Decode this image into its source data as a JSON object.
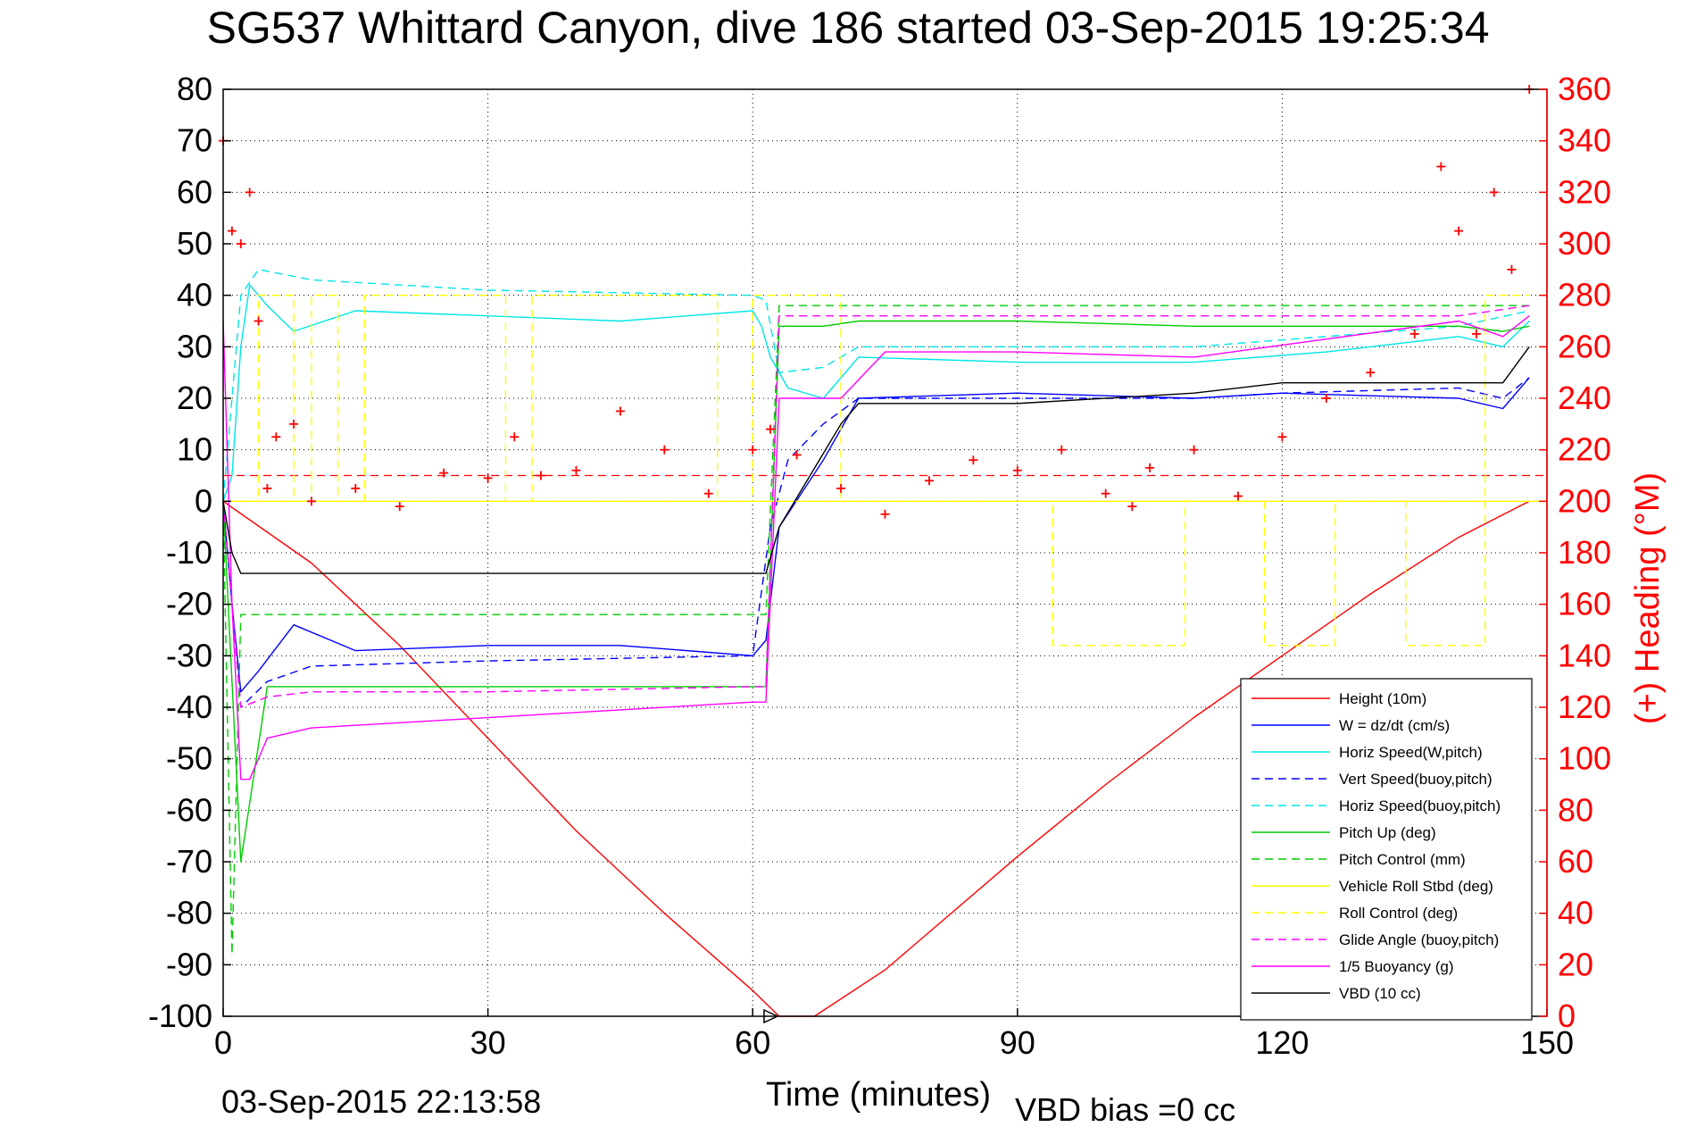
{
  "chart_data": {
    "type": "line",
    "title": "SG537 Whittard Canyon, dive 186 started 03-Sep-2015 19:25:34",
    "xlabel": "Time (minutes)",
    "y2label": "(+) Heading (°M)",
    "footer_timestamp": "03-Sep-2015 22:13:58",
    "footer_note": "VBD bias =0 cc",
    "xlim": [
      0,
      150
    ],
    "ylim": [
      -100,
      80
    ],
    "y2lim": [
      0,
      360
    ],
    "x_ticks": [
      "0",
      "30",
      "60",
      "90",
      "120",
      "150"
    ],
    "y_ticks": [
      "80",
      "70",
      "60",
      "50",
      "40",
      "30",
      "20",
      "10",
      "0",
      "-10",
      "-20",
      "-30",
      "-40",
      "-50",
      "-60",
      "-70",
      "-80",
      "-90",
      "-100"
    ],
    "y2_ticks": [
      "360",
      "340",
      "320",
      "300",
      "280",
      "260",
      "240",
      "220",
      "200",
      "180",
      "160",
      "140",
      "120",
      "100",
      "80",
      "60",
      "40",
      "20",
      "0"
    ],
    "grid": true,
    "legend_position": "bottom-right",
    "series": [
      {
        "name": "Height (10m)",
        "color": "#ff0000",
        "style": "solid",
        "x": [
          0,
          10,
          20,
          30,
          40,
          50,
          60,
          63,
          67,
          75,
          90,
          100,
          110,
          120,
          130,
          140,
          148
        ],
        "y": [
          0,
          -12,
          -28,
          -46,
          -64,
          -80,
          -95,
          -100,
          -100,
          -91,
          -69,
          -55,
          -42,
          -30,
          -18,
          -7,
          0
        ]
      },
      {
        "name": "W = dz/dt (cm/s)",
        "color": "#0000ff",
        "style": "solid",
        "x": [
          0,
          1,
          2,
          4,
          8,
          15,
          30,
          45,
          60,
          61.5,
          63,
          68,
          72,
          90,
          110,
          120,
          140,
          145,
          148
        ],
        "y": [
          0,
          -20,
          -37,
          -33,
          -24,
          -29,
          -28,
          -28,
          -30,
          -27,
          -5,
          8,
          20,
          21,
          20,
          21,
          20,
          18,
          24
        ]
      },
      {
        "name": "Horiz Speed(W,pitch)",
        "color": "#00e5e5",
        "style": "solid",
        "x": [
          0,
          1,
          2,
          3,
          5,
          8,
          15,
          30,
          45,
          60,
          61,
          62,
          64,
          68,
          72,
          90,
          110,
          125,
          140,
          145,
          148
        ],
        "y": [
          0,
          5,
          30,
          42,
          38,
          33,
          37,
          36,
          35,
          37,
          34,
          28,
          22,
          20,
          28,
          27,
          27,
          29,
          32,
          30,
          35
        ]
      },
      {
        "name": "Vert Speed(buoy,pitch)",
        "color": "#0000ff",
        "style": "dashed",
        "x": [
          0,
          2,
          5,
          10,
          30,
          60,
          62,
          64,
          68,
          72,
          90,
          110,
          120,
          140,
          145,
          148
        ],
        "y": [
          0,
          -40,
          -35,
          -32,
          -31,
          -30,
          -5,
          8,
          15,
          20,
          20,
          20,
          21,
          22,
          20,
          24
        ]
      },
      {
        "name": "Horiz Speed(buoy,pitch)",
        "color": "#00e5e5",
        "style": "dashed",
        "x": [
          0,
          2,
          4,
          10,
          30,
          60,
          61.5,
          63,
          68,
          72,
          90,
          110,
          125,
          140,
          148
        ],
        "y": [
          0,
          40,
          45,
          43,
          41,
          40,
          39,
          25,
          26,
          30,
          30,
          30,
          32,
          34,
          37
        ]
      },
      {
        "name": "Pitch Up (deg)",
        "color": "#00cc00",
        "style": "solid",
        "x": [
          0,
          2,
          5,
          10,
          30,
          60,
          61.5,
          63,
          68,
          72,
          90,
          110,
          130,
          140,
          145,
          148
        ],
        "y": [
          0,
          -70,
          -36,
          -36,
          -36,
          -36,
          -36,
          34,
          34,
          35,
          35,
          34,
          34,
          34,
          33,
          34
        ]
      },
      {
        "name": "Pitch Control (mm)",
        "color": "#00cc00",
        "style": "dashed",
        "x": [
          0,
          1,
          2,
          10,
          30,
          60,
          61.5,
          63,
          148
        ],
        "y": [
          0,
          -88,
          -22,
          -22,
          -22,
          -22,
          -22,
          38,
          38
        ]
      },
      {
        "name": "Vehicle Roll Stbd (deg)",
        "color": "#ffff00",
        "style": "solid",
        "x": [
          0,
          150
        ],
        "y": [
          0,
          0
        ]
      },
      {
        "name": "Roll Control (deg)",
        "color": "#ffff00",
        "style": "dashed",
        "x": [
          0,
          4,
          4,
          8,
          8,
          10,
          10,
          13,
          13,
          16,
          16,
          32,
          32,
          35,
          35,
          56,
          56,
          60,
          60,
          70,
          70,
          94,
          94,
          109,
          109,
          118,
          118,
          126,
          126,
          134,
          134,
          143,
          143,
          148
        ],
        "y": [
          0,
          0,
          40,
          40,
          0,
          0,
          40,
          40,
          0,
          0,
          40,
          40,
          0,
          0,
          40,
          40,
          0,
          0,
          40,
          40,
          0,
          0,
          -28,
          -28,
          0,
          0,
          -28,
          -28,
          0,
          0,
          -28,
          -28,
          40,
          40
        ]
      },
      {
        "name": "Glide Angle (buoy,pitch)",
        "color": "#ff00ff",
        "style": "dashed",
        "x": [
          0,
          2,
          5,
          10,
          30,
          60,
          61.5,
          63,
          68,
          90,
          110,
          140,
          148
        ],
        "y": [
          0,
          -40,
          -38,
          -37,
          -37,
          -36,
          -36,
          36,
          36,
          36,
          36,
          36,
          38
        ]
      },
      {
        "name": "1/5 Buoyancy (g)",
        "color": "#ff00ff",
        "style": "solid",
        "x": [
          0,
          1,
          2,
          3,
          5,
          10,
          20,
          40,
          60,
          61.5,
          63,
          70,
          75,
          90,
          110,
          140,
          145,
          148
        ],
        "y": [
          35,
          -20,
          -54,
          -54,
          -46,
          -44,
          -43,
          -41,
          -39,
          -39,
          20,
          20,
          29,
          29,
          28,
          35,
          32,
          36
        ]
      },
      {
        "name": "VBD (10 cc)",
        "color": "#000000",
        "style": "solid",
        "x": [
          0,
          1,
          2,
          60,
          61.5,
          63,
          70,
          72,
          90,
          110,
          120,
          145,
          148
        ],
        "y": [
          0,
          -10,
          -14,
          -14,
          -14,
          -5,
          15,
          19,
          19,
          21,
          23,
          23,
          30
        ]
      }
    ],
    "heading_series": {
      "name": "(+) Heading",
      "color": "#ff0000",
      "marker": "+",
      "x": [
        0,
        1,
        2,
        3,
        4,
        5,
        6,
        8,
        10,
        15,
        20,
        25,
        30,
        33,
        36,
        40,
        45,
        50,
        55,
        60,
        62,
        65,
        70,
        75,
        80,
        85,
        90,
        95,
        100,
        103,
        105,
        110,
        115,
        120,
        125,
        130,
        135,
        138,
        140,
        142,
        144,
        146,
        148
      ],
      "y": [
        340,
        305,
        300,
        320,
        270,
        205,
        225,
        230,
        200,
        205,
        198,
        211,
        209,
        225,
        210,
        212,
        235,
        220,
        203,
        220,
        228,
        218,
        205,
        195,
        208,
        216,
        212,
        220,
        203,
        198,
        213,
        220,
        202,
        225,
        240,
        250,
        265,
        330,
        305,
        265,
        320,
        290,
        360
      ]
    },
    "heading_reference": {
      "y2": 210,
      "color": "#ff0000",
      "style": "dashed"
    },
    "apogee_marker": {
      "x": 62,
      "y": -100,
      "color": "#000000"
    }
  }
}
